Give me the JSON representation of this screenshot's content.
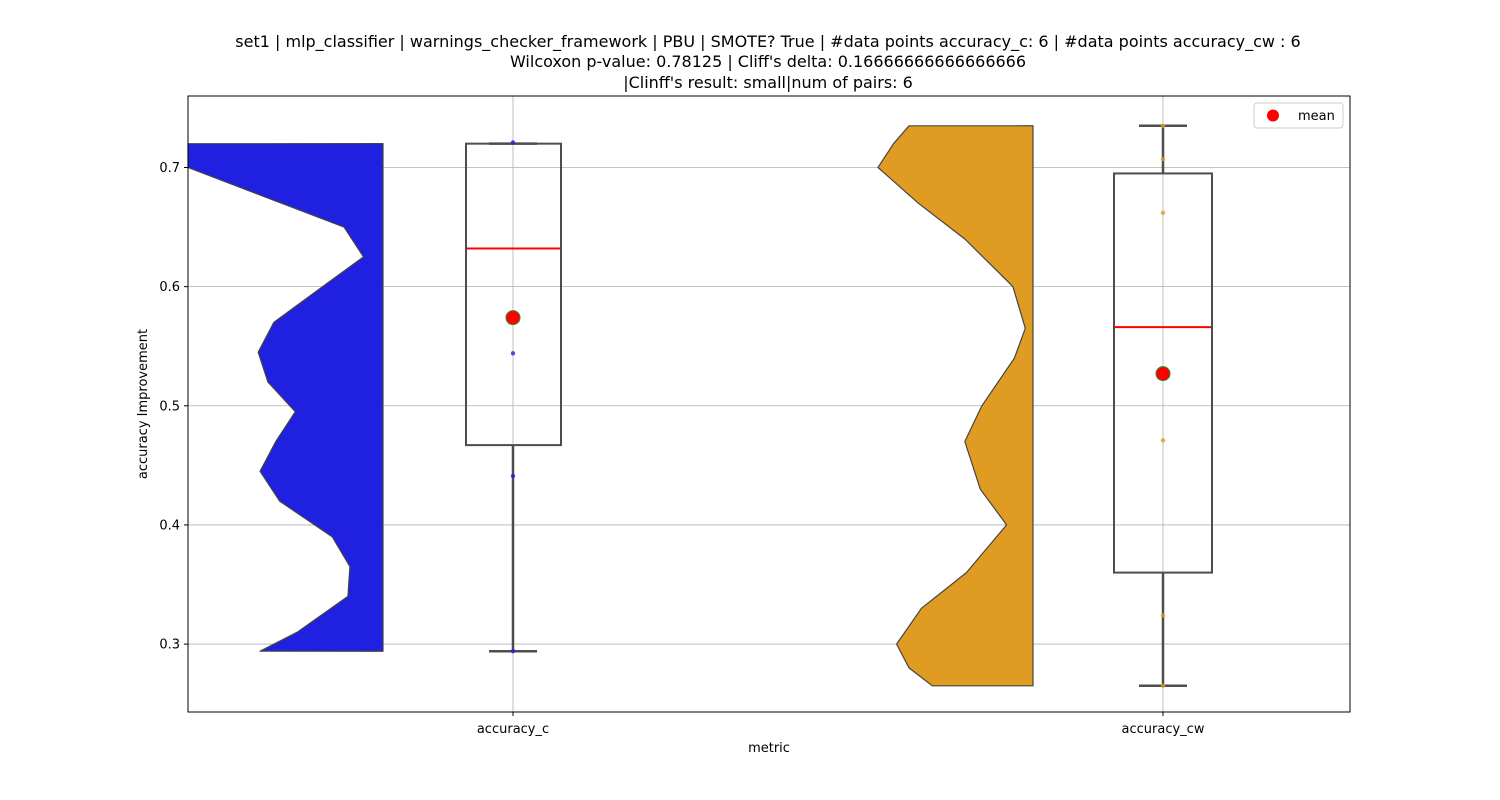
{
  "chart_data": {
    "type": "violin+box",
    "title_lines": [
      "set1 | mlp_classifier | warnings_checker_framework | PBU | SMOTE? True | #data points accuracy_c: 6 | #data points accuracy_cw : 6",
      "Wilcoxon p-value: 0.78125 | Cliff's delta: 0.16666666666666666",
      "|Clinff's result: small|num of pairs: 6"
    ],
    "xlabel": "metric",
    "ylabel": "accuracy Improvement",
    "ylim": [
      0.243,
      0.76
    ],
    "yticks": [
      0.3,
      0.4,
      0.5,
      0.6,
      0.7
    ],
    "ytick_labels": [
      "0.3",
      "0.4",
      "0.5",
      "0.6",
      "0.7"
    ],
    "grid": true,
    "legend": {
      "position": "top-right",
      "entries": [
        {
          "label": "mean",
          "marker": "circle",
          "color": "#ff0000"
        }
      ]
    },
    "categories": [
      "accuracy_c",
      "accuracy_cw"
    ],
    "groups": [
      {
        "category": "accuracy_c",
        "violin_color": "#2020e0",
        "violin_extent": [
          0.294,
          0.72
        ],
        "violin_width_profile": [
          [
            0.294,
            0.63
          ],
          [
            0.31,
            0.44
          ],
          [
            0.34,
            0.18
          ],
          [
            0.365,
            0.17
          ],
          [
            0.39,
            0.26
          ],
          [
            0.42,
            0.53
          ],
          [
            0.445,
            0.63
          ],
          [
            0.47,
            0.55
          ],
          [
            0.495,
            0.45
          ],
          [
            0.52,
            0.59
          ],
          [
            0.545,
            0.64
          ],
          [
            0.57,
            0.56
          ],
          [
            0.6,
            0.31
          ],
          [
            0.625,
            0.1
          ],
          [
            0.65,
            0.2
          ],
          [
            0.675,
            0.6
          ],
          [
            0.7,
            1.0
          ],
          [
            0.72,
            1.0
          ]
        ],
        "points": [
          0.294,
          0.441,
          0.544,
          0.721
        ],
        "q1": 0.467,
        "median": 0.632,
        "q3": 0.72,
        "whisker_low": 0.294,
        "whisker_high": 0.72,
        "mean": 0.574
      },
      {
        "category": "accuracy_cw",
        "violin_color": "#e09c22",
        "violin_extent": [
          0.265,
          0.735
        ],
        "violin_width_profile": [
          [
            0.265,
            0.65
          ],
          [
            0.28,
            0.8
          ],
          [
            0.3,
            0.88
          ],
          [
            0.33,
            0.72
          ],
          [
            0.36,
            0.43
          ],
          [
            0.4,
            0.17
          ],
          [
            0.43,
            0.34
          ],
          [
            0.47,
            0.44
          ],
          [
            0.5,
            0.33
          ],
          [
            0.54,
            0.12
          ],
          [
            0.565,
            0.05
          ],
          [
            0.6,
            0.13
          ],
          [
            0.64,
            0.44
          ],
          [
            0.67,
            0.74
          ],
          [
            0.7,
            1.0
          ],
          [
            0.72,
            0.9
          ],
          [
            0.735,
            0.8
          ]
        ],
        "points": [
          0.265,
          0.324,
          0.471,
          0.662,
          0.707,
          0.735
        ],
        "q1": 0.36,
        "median": 0.566,
        "q3": 0.695,
        "whisker_low": 0.265,
        "whisker_high": 0.735,
        "mean": 0.527
      }
    ]
  }
}
